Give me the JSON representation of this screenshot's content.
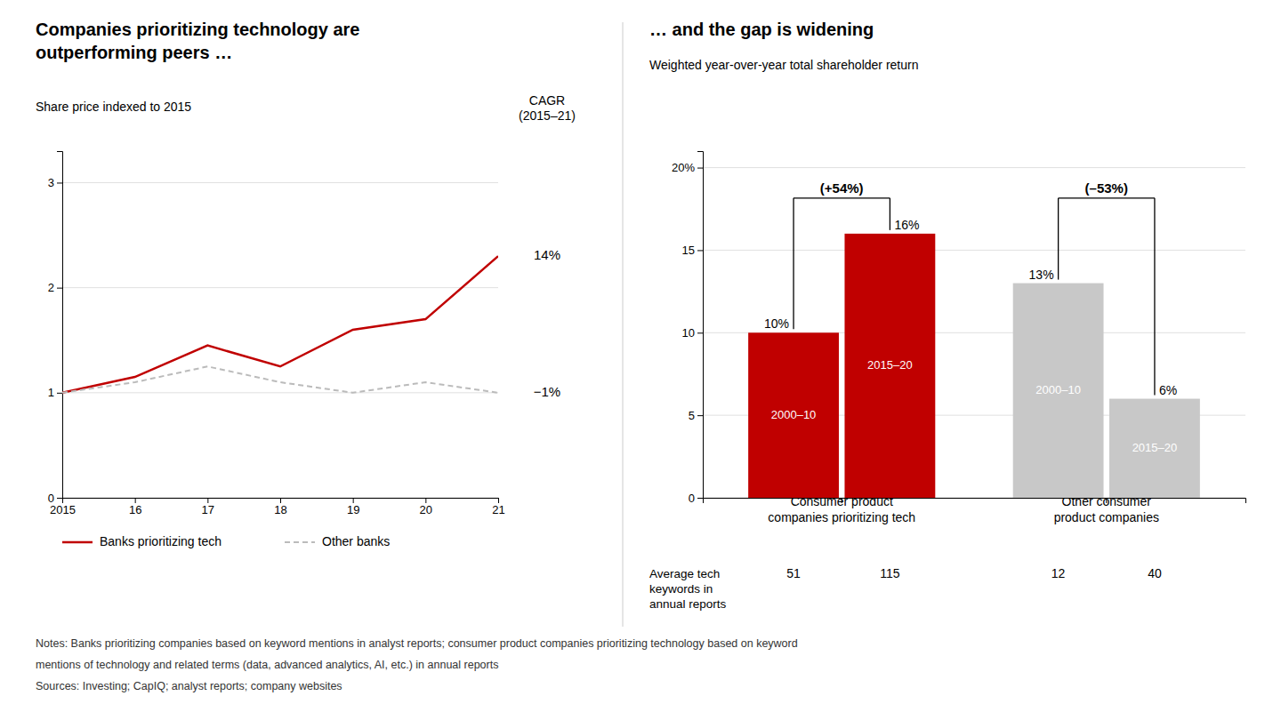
{
  "chart_data": [
    {
      "type": "line",
      "title": "Companies prioritizing technology are\noutperforming peers …",
      "subtitle": "Share price indexed to 2015",
      "x": [
        2015,
        2016,
        2017,
        2018,
        2019,
        2020,
        2021
      ],
      "xlim": [
        2015,
        2021
      ],
      "xticks": [
        2015,
        {
          "value": 2016,
          "label": "16"
        },
        {
          "value": 2017,
          "label": "17"
        },
        {
          "value": 2018,
          "label": "18"
        },
        {
          "value": 2019,
          "label": "19"
        },
        {
          "value": 2020,
          "label": "20"
        },
        {
          "value": 2021,
          "label": "21"
        }
      ],
      "ylim": [
        0,
        3.3
      ],
      "yticks": [
        0,
        1,
        2,
        3
      ],
      "grid": true,
      "legend": "bottom",
      "series": [
        {
          "name": "Banks prioritizing tech",
          "color": "#C00000",
          "line_style": "solid",
          "values": [
            1.0,
            1.15,
            1.45,
            1.25,
            1.6,
            1.7,
            2.3
          ]
        },
        {
          "name": "Other banks",
          "color": "#BBBBBB",
          "line_style": "dashed",
          "values": [
            1.0,
            1.1,
            1.25,
            1.1,
            1.0,
            1.1,
            1.0
          ]
        }
      ],
      "annotations": [
        "CAGR\n(2015–21)",
        "14%",
        "−1%"
      ]
    },
    {
      "type": "bar",
      "title": "… and the gap is widening",
      "subtitle": "Weighted year-over-year total shareholder return",
      "categories": [
        "Consumer product\ncompanies prioritizing tech",
        "Other consumer\nproduct companies"
      ],
      "series": [
        {
          "name": "2000–10",
          "colors": [
            "#C00000",
            "#C8C8C8"
          ],
          "values": [
            10,
            13
          ],
          "value_labels": [
            "10%",
            "13%"
          ],
          "keywords": [
            51,
            12
          ]
        },
        {
          "name": "2015–20",
          "colors": [
            "#C00000",
            "#C8C8C8"
          ],
          "values": [
            16,
            6
          ],
          "value_labels": [
            "16%",
            "6%"
          ],
          "keywords": [
            115,
            40
          ]
        }
      ],
      "ylim": [
        0,
        21
      ],
      "yticks": [
        0,
        5,
        10,
        15,
        {
          "value": 20,
          "label": "20%"
        }
      ],
      "grid": true,
      "data_labels": true,
      "annotations": [
        "(+54%)",
        "(–53%)"
      ],
      "keywords_label": "Average tech\nkeywords in\nannual reports"
    }
  ],
  "notes": [
    "Notes: Banks prioritizing companies based on keyword mentions in analyst reports; consumer product companies prioritizing technology based on keyword",
    "mentions of technology and related terms (data, advanced analytics, AI, etc.) in annual reports",
    "Sources: Investing; CapIQ; analyst reports; company websites"
  ]
}
